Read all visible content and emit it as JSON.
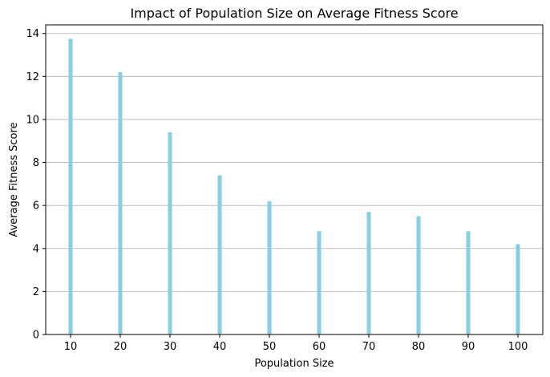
{
  "chart_data": {
    "type": "bar",
    "title": "Impact of Population Size on Average Fitness Score",
    "xlabel": "Population Size",
    "ylabel": "Average Fitness Score",
    "x": [
      10,
      20,
      30,
      40,
      50,
      60,
      70,
      80,
      90,
      100
    ],
    "values": [
      13.75,
      12.2,
      9.4,
      7.4,
      6.2,
      4.8,
      5.7,
      5.5,
      4.8,
      4.2
    ],
    "xticks": [
      10,
      20,
      30,
      40,
      50,
      60,
      70,
      80,
      90,
      100
    ],
    "yticks": [
      0,
      2,
      4,
      6,
      8,
      10,
      12,
      14
    ],
    "xlim": [
      5,
      105
    ],
    "ylim": [
      0,
      14.4
    ],
    "grid": "y-axis",
    "bar_color": "#87CEEB",
    "grid_color": "#b0b0b0"
  }
}
